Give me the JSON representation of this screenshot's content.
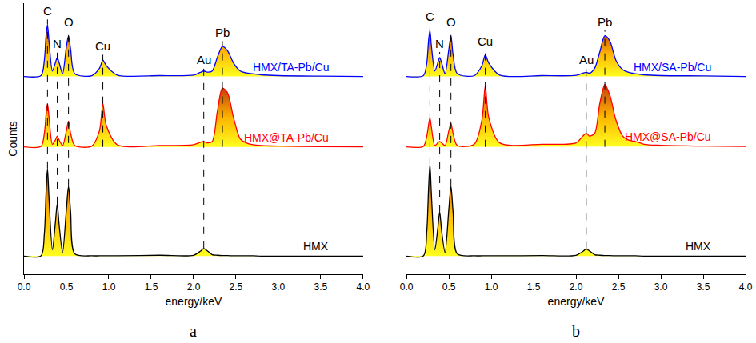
{
  "chart_data": [
    {
      "type": "line",
      "title": "a",
      "x_label": "energy/keV",
      "y_label": "Counts",
      "x": [
        0,
        0.2,
        0.24,
        0.26,
        0.277,
        0.295,
        0.335,
        0.37,
        0.392,
        0.415,
        0.455,
        0.5,
        0.525,
        0.55,
        0.6,
        0.8,
        0.89,
        0.93,
        0.97,
        1.1,
        1.6,
        2.0,
        2.08,
        2.12,
        2.16,
        2.22,
        2.28,
        2.34,
        2.4,
        2.47,
        2.55,
        2.62,
        2.7,
        2.8,
        3.0,
        3.5,
        4.0
      ],
      "series": [
        {
          "name": "HMX/TA-Pb/Cu",
          "color": "#0000ff",
          "values": [
            73,
            73.3,
            79,
            88,
            92,
            86,
            75,
            78,
            80,
            78,
            74,
            84,
            88,
            83,
            74,
            73.3,
            76,
            79,
            77,
            73.5,
            73.3,
            73.5,
            74.5,
            75,
            74.6,
            75,
            80,
            84,
            82.5,
            78,
            75,
            74.3,
            74,
            73.6,
            73.3,
            73.1,
            73
          ]
        },
        {
          "name": "HMX@TA-Pb/Cu",
          "color": "#ff0000",
          "values": [
            47,
            47.2,
            52,
            59,
            63,
            58,
            48,
            49.5,
            51,
            49.5,
            47.5,
            53,
            56.5,
            52,
            47.5,
            47.3,
            53,
            63,
            55,
            47.8,
            47.5,
            47.8,
            48.7,
            49,
            48.5,
            49,
            60,
            68.7,
            67,
            58,
            50,
            48.5,
            47.8,
            47.5,
            47.3,
            47.1,
            47
          ]
        },
        {
          "name": "HMX",
          "color": "#000000",
          "values": [
            6.7,
            6.8,
            15,
            30,
            39,
            28,
            9,
            19,
            26,
            18,
            8,
            24,
            32.5,
            23,
            7.5,
            6.8,
            6.8,
            6.8,
            6.8,
            6.8,
            7.0,
            7.0,
            8.5,
            9.5,
            8.7,
            7.2,
            7.0,
            6.9,
            6.9,
            6.8,
            6.8,
            6.8,
            6.8,
            6.7,
            6.7,
            6.7,
            6.7
          ]
        }
      ],
      "annotations": [
        {
          "text": "C",
          "x": 0.277,
          "y": 94,
          "line_to": 39
        },
        {
          "text": "N",
          "x": 0.392,
          "y": 82,
          "line_to": 26
        },
        {
          "text": "O",
          "x": 0.525,
          "y": 90,
          "line_to": 32.5
        },
        {
          "text": "Cu",
          "x": 0.93,
          "y": 81,
          "line_to": 47
        },
        {
          "text": "Au",
          "x": 2.12,
          "y": 76,
          "line_to": 9.5
        },
        {
          "text": "Pb",
          "x": 2.34,
          "y": 86,
          "line_to": 47
        }
      ],
      "xlim": [
        0,
        4
      ],
      "xticks": [
        {
          "value": 0,
          "label": "0.0"
        },
        0.5,
        {
          "value": 1,
          "label": "1.0"
        },
        1.5,
        {
          "value": 2,
          "label": "2.0"
        },
        2.5,
        {
          "value": 3,
          "label": "3.0"
        },
        3.5,
        {
          "value": 4,
          "label": "4.0"
        }
      ],
      "ylim": [
        0,
        100
      ],
      "yticks": [],
      "grid": false,
      "tick_labels": "x"
    },
    {
      "type": "line",
      "title": "b",
      "x_label": "energy/keV",
      "x": [
        0,
        0.2,
        0.24,
        0.26,
        0.277,
        0.295,
        0.335,
        0.37,
        0.392,
        0.415,
        0.455,
        0.5,
        0.525,
        0.55,
        0.6,
        0.8,
        0.89,
        0.93,
        0.97,
        1.1,
        1.6,
        2.0,
        2.08,
        2.12,
        2.16,
        2.22,
        2.28,
        2.34,
        2.4,
        2.47,
        2.55,
        2.62,
        2.7,
        2.8,
        3.0,
        3.5,
        4.0
      ],
      "series": [
        {
          "name": "HMX/SA-Pb/Cu",
          "color": "#0000ff",
          "values": [
            73,
            73.3,
            78,
            86,
            90,
            84,
            75,
            78,
            80,
            78,
            74,
            83,
            88,
            81,
            74,
            73.3,
            77,
            81,
            78,
            73.5,
            73.3,
            73.4,
            74.2,
            74.5,
            74.2,
            76,
            82,
            88,
            86,
            79,
            75.5,
            74.5,
            74,
            73.6,
            73.3,
            73.2,
            73
          ]
        },
        {
          "name": "HMX@SA-Pb/Cu",
          "color": "#ff0000",
          "values": [
            47,
            47.2,
            51,
            55,
            57.7,
            54,
            47.5,
            48.5,
            49,
            48.5,
            47.5,
            53,
            55.7,
            52,
            47.5,
            48,
            57,
            69.6,
            58,
            48.5,
            48,
            48.5,
            51,
            52,
            51,
            52,
            63,
            70,
            66,
            57,
            51,
            49.5,
            49,
            48,
            47.6,
            47.3,
            47.2
          ]
        },
        {
          "name": "HMX",
          "color": "#000000",
          "values": [
            6.7,
            6.8,
            16,
            31,
            40.6,
            29,
            9,
            17,
            23,
            16,
            8,
            24,
            32.5,
            23,
            7.5,
            6.8,
            6.8,
            6.8,
            6.8,
            6.8,
            6.9,
            7.0,
            8.4,
            9.3,
            8.6,
            7.2,
            7.0,
            6.9,
            6.9,
            6.8,
            6.8,
            6.8,
            6.8,
            6.7,
            6.7,
            6.7,
            6.7
          ]
        }
      ],
      "annotations": [
        {
          "text": "C",
          "x": 0.277,
          "y": 92,
          "line_to": 40.6
        },
        {
          "text": "N",
          "x": 0.392,
          "y": 82,
          "line_to": 23
        },
        {
          "text": "O",
          "x": 0.525,
          "y": 90,
          "line_to": 32.5
        },
        {
          "text": "Cu",
          "x": 0.93,
          "y": 83,
          "line_to": 47
        },
        {
          "text": "Au",
          "x": 2.12,
          "y": 76,
          "line_to": 9.3
        },
        {
          "text": "Pb",
          "x": 2.34,
          "y": 90,
          "line_to": 47
        }
      ],
      "xlim": [
        0,
        4
      ],
      "xticks": [
        {
          "value": 0,
          "label": "0.0"
        },
        0.5,
        {
          "value": 1,
          "label": "1.0"
        },
        1.5,
        {
          "value": 2,
          "label": "2.0"
        },
        2.5,
        {
          "value": 3,
          "label": "3.0"
        },
        3.5,
        {
          "value": 4,
          "label": "4.0"
        }
      ],
      "ylim": [
        0,
        100
      ],
      "yticks": [],
      "grid": false,
      "tick_labels": "x"
    }
  ]
}
